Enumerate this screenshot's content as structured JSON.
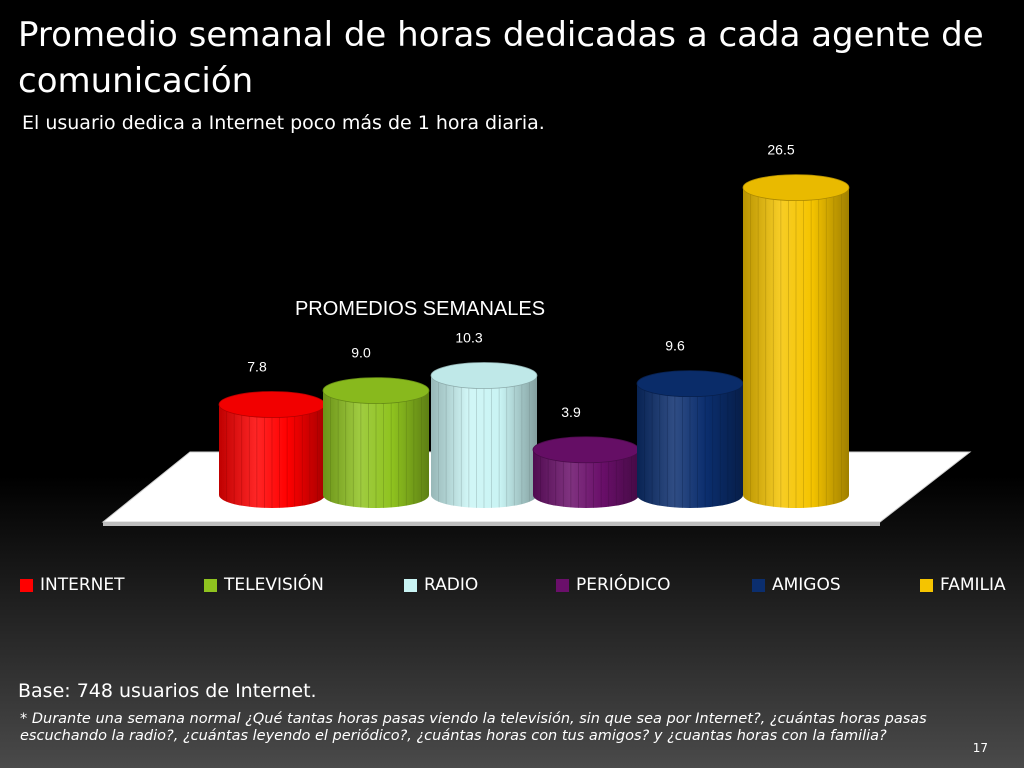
{
  "slide": {
    "title": "Promedio semanal de horas dedicadas a cada agente de comunicación",
    "subtitle": "El usuario dedica a Internet poco más de 1 hora diaria.",
    "base": "Base: 748 usuarios de Internet.",
    "footnote": "* Durante una semana normal  ¿Qué tantas horas pasas viendo la televisión, sin que sea por Internet?, ¿cuántas horas pasas escuchando la radio?, ¿cuántas leyendo  el periódico?, ¿cuántas horas con tus amigos? y ¿cuantas horas con la familia?",
    "page_number": "17"
  },
  "chart_data": {
    "type": "bar",
    "style": "3d-cylinder",
    "title": "PROMEDIOS  SEMANALES",
    "categories": [
      "INTERNET",
      "TELEVISIÓN",
      "RADIO",
      "PERIÓDICO",
      "AMIGOS",
      "FAMILIA"
    ],
    "values": [
      7.8,
      9.0,
      10.3,
      3.9,
      9.6,
      26.5
    ],
    "value_labels": [
      "7.8",
      "9.0",
      "10.3",
      "3.9",
      "9.6",
      "26.5"
    ],
    "colors": [
      "#ff0000",
      "#8fc31f",
      "#c9f4f4",
      "#6a0f6a",
      "#0b2e6e",
      "#f5c400"
    ],
    "ylim": [
      0,
      26.5
    ],
    "legend_position": "bottom",
    "grid": false,
    "xlabel": "",
    "ylabel": ""
  }
}
